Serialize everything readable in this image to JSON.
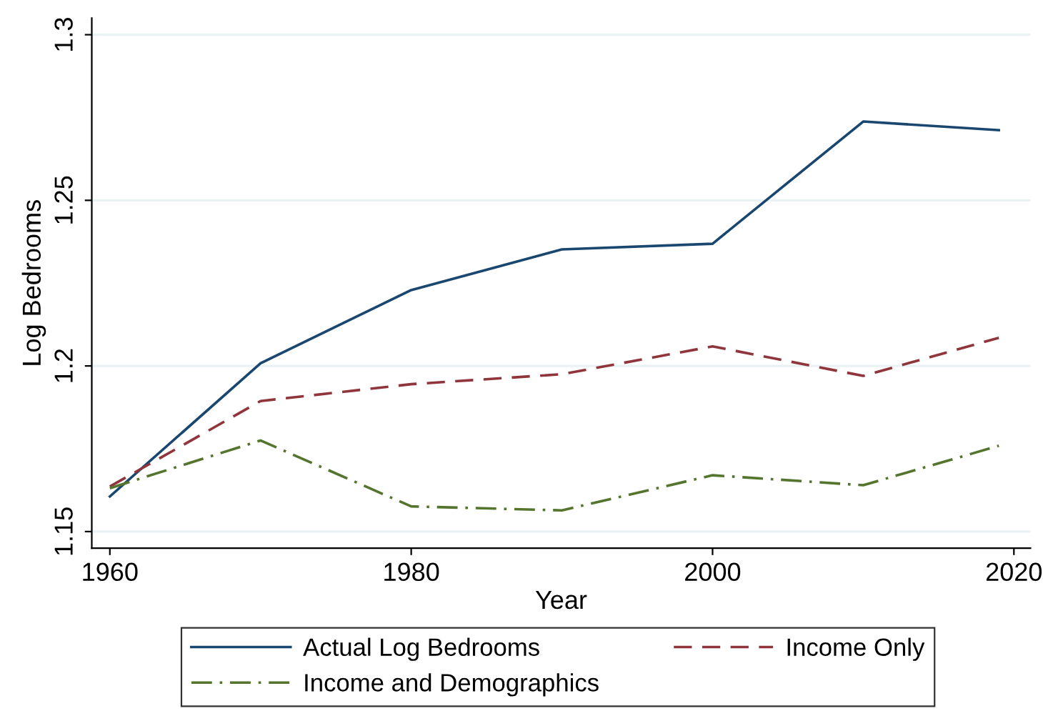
{
  "chart_data": {
    "type": "line",
    "xlabel": "Year",
    "ylabel": "Log Bedrooms",
    "x": [
      1960,
      1970,
      1980,
      1990,
      2000,
      2010,
      2019
    ],
    "series": [
      {
        "name": "Actual Log Bedrooms",
        "color": "#1a476f",
        "line_style": "solid",
        "values": [
          1.1606,
          1.2008,
          1.2229,
          1.2352,
          1.2369,
          1.2738,
          1.2712
        ]
      },
      {
        "name": "Income Only",
        "color": "#90353b",
        "line_style": "dashed",
        "values": [
          1.1636,
          1.1894,
          1.1945,
          1.1975,
          1.2059,
          1.197,
          1.2085
        ]
      },
      {
        "name": "Income and Demographics",
        "color": "#55752f",
        "line_style": "dashdot",
        "values": [
          1.1631,
          1.1775,
          1.1576,
          1.1564,
          1.167,
          1.164,
          1.1759
        ]
      }
    ],
    "xlim": [
      1958.8,
      2021.1
    ],
    "ylim": [
      1.145,
      1.305
    ],
    "xticks": [
      1960,
      1980,
      2000,
      2020
    ],
    "yticks": [
      1.15,
      1.2,
      1.25,
      1.3
    ],
    "grid": "y",
    "legend": "bottom",
    "marker": "none"
  }
}
